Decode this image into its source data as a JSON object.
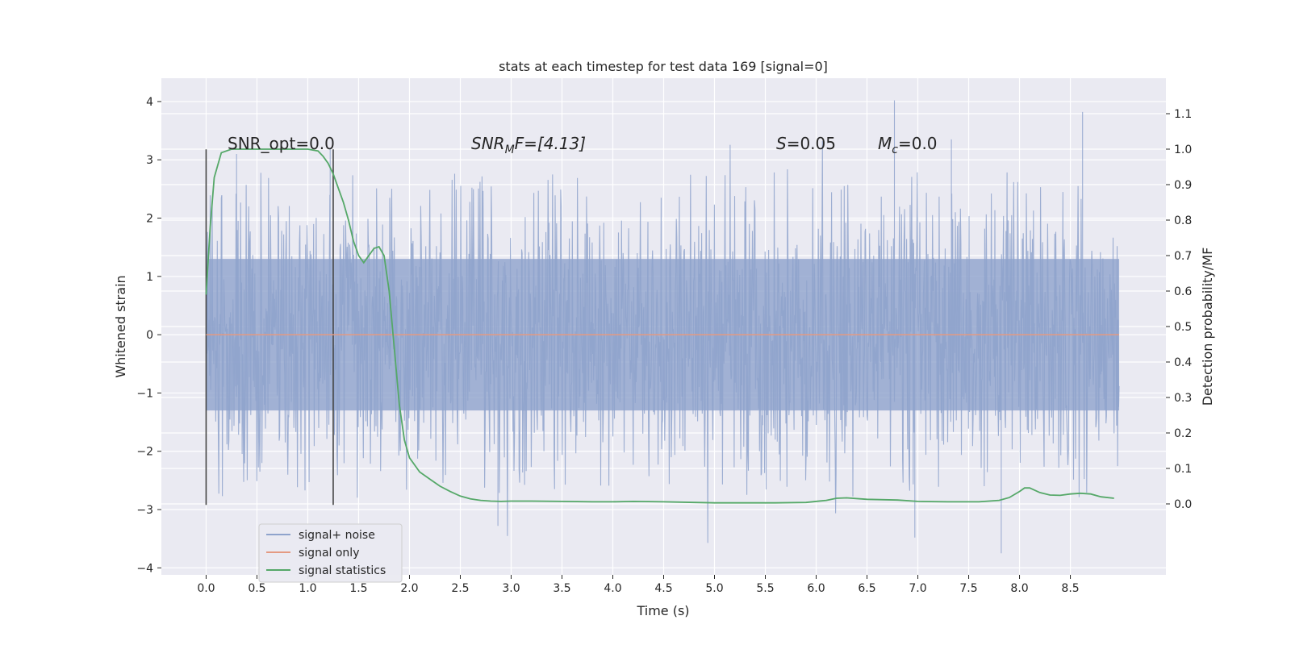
{
  "chart_data": {
    "type": "line",
    "title": "stats at each timestep for test data 169 [signal=0]",
    "xlabel": "Time (s)",
    "ylabel": "Whitened strain",
    "ylabel_right": "Detection probability/MF",
    "xlim": [
      -0.44,
      9.44
    ],
    "ylim": [
      -4.12,
      4.4
    ],
    "ylim_right": [
      -0.2,
      1.2
    ],
    "x_ticks": [
      "0.0",
      "0.5",
      "1.0",
      "1.5",
      "2.0",
      "2.5",
      "3.0",
      "3.5",
      "4.0",
      "4.5",
      "5.0",
      "5.5",
      "6.0",
      "6.5",
      "7.0",
      "7.5",
      "8.0",
      "8.5"
    ],
    "y_ticks": [
      "−4",
      "−3",
      "−2",
      "−1",
      "0",
      "1",
      "2",
      "3",
      "4"
    ],
    "y_ticks_right": [
      "0.0",
      "0.1",
      "0.2",
      "0.3",
      "0.4",
      "0.5",
      "0.6",
      "0.7",
      "0.8",
      "0.9",
      "1.0",
      "1.1"
    ],
    "grid": true,
    "legend_position": "lower-left",
    "legend": [
      "signal+ noise",
      "signal only",
      "signal statistics"
    ],
    "annotations": {
      "snr_opt": "SNR_opt=0.0",
      "snr_mf_main": "SNR",
      "snr_mf_sub": "M",
      "snr_mf_rest": "F=[4.13]",
      "s_main": "S",
      "s_rest": "=0.05",
      "mc_main": "M",
      "mc_sub": "c",
      "mc_rest": "=0.0"
    },
    "vertical_markers": [
      0.0,
      1.25
    ],
    "series": [
      {
        "name": "signal+ noise",
        "color": "#8fa3cc",
        "kind": "noise",
        "x_range": [
          0.0,
          8.98
        ],
        "typical_amplitude": 1.3,
        "peak_range": [
          -3.75,
          4.02
        ]
      },
      {
        "name": "signal only",
        "color": "#e49a82",
        "x": [
          0.0,
          8.98
        ],
        "values": [
          0.0,
          0.0
        ]
      },
      {
        "name": "signal statistics",
        "color": "#55a868",
        "axis": "right",
        "x": [
          0.0,
          0.04,
          0.08,
          0.15,
          0.25,
          0.4,
          0.6,
          0.8,
          1.0,
          1.1,
          1.15,
          1.2,
          1.25,
          1.3,
          1.35,
          1.4,
          1.45,
          1.5,
          1.55,
          1.6,
          1.65,
          1.7,
          1.75,
          1.8,
          1.85,
          1.9,
          1.95,
          2.0,
          2.1,
          2.2,
          2.3,
          2.4,
          2.5,
          2.6,
          2.7,
          2.8,
          2.9,
          3.0,
          3.2,
          3.5,
          3.8,
          4.0,
          4.2,
          4.5,
          4.8,
          5.0,
          5.3,
          5.6,
          5.9,
          6.1,
          6.2,
          6.3,
          6.5,
          6.8,
          7.0,
          7.3,
          7.6,
          7.8,
          7.9,
          8.0,
          8.05,
          8.1,
          8.2,
          8.3,
          8.4,
          8.5,
          8.6,
          8.7,
          8.8,
          8.93
        ],
        "values": [
          0.59,
          0.78,
          0.92,
          0.99,
          1.0,
          1.0,
          1.0,
          1.0,
          1.0,
          0.995,
          0.98,
          0.96,
          0.93,
          0.89,
          0.85,
          0.8,
          0.74,
          0.7,
          0.68,
          0.7,
          0.72,
          0.725,
          0.7,
          0.6,
          0.44,
          0.28,
          0.18,
          0.13,
          0.09,
          0.07,
          0.05,
          0.035,
          0.022,
          0.014,
          0.01,
          0.008,
          0.007,
          0.008,
          0.008,
          0.007,
          0.006,
          0.006,
          0.007,
          0.006,
          0.004,
          0.003,
          0.003,
          0.003,
          0.004,
          0.01,
          0.016,
          0.017,
          0.013,
          0.011,
          0.007,
          0.006,
          0.006,
          0.01,
          0.018,
          0.035,
          0.045,
          0.045,
          0.032,
          0.025,
          0.024,
          0.028,
          0.03,
          0.028,
          0.02,
          0.016
        ]
      }
    ]
  }
}
